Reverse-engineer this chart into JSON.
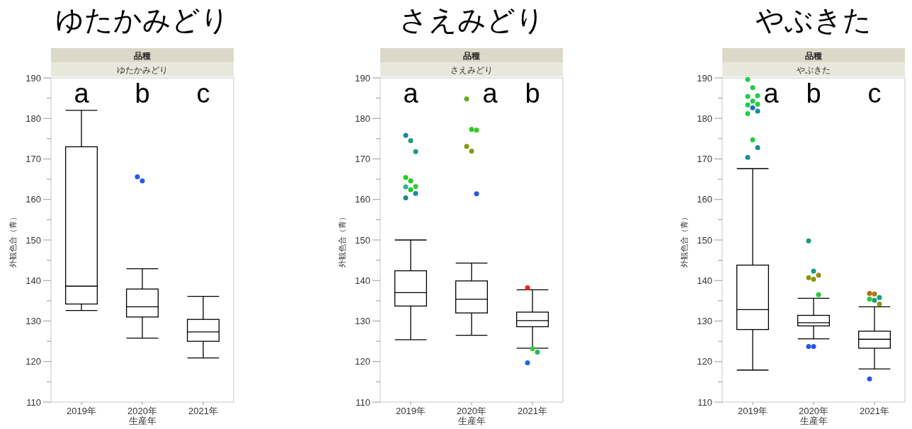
{
  "chart_data": [
    {
      "type": "box",
      "title": "ゆたかみどり",
      "subtitle": "品種",
      "xlabel": "生産年",
      "ylabel": "外観色合（青）",
      "categories": [
        "2019年",
        "2020年",
        "2021年"
      ],
      "ylim": [
        110,
        190
      ],
      "yticks": [
        110,
        {
          "value": 115,
          "label": null
        },
        120,
        {
          "value": 125,
          "label": null
        },
        130,
        {
          "value": 135,
          "label": null
        },
        140,
        {
          "value": 145,
          "label": null
        },
        150,
        {
          "value": 155,
          "label": null
        },
        160,
        {
          "value": 165,
          "label": null
        },
        170,
        {
          "value": 175,
          "label": null
        },
        180,
        {
          "value": 185,
          "label": null
        },
        190
      ],
      "boxes": [
        {
          "low": 132.6,
          "q1": 134.2,
          "median": 138.6,
          "q3": 173.0,
          "high": 182.0
        },
        {
          "low": 125.8,
          "q1": 131.0,
          "median": 133.5,
          "q3": 137.9,
          "high": 142.9
        },
        {
          "low": 120.9,
          "q1": 125.0,
          "median": 127.3,
          "q3": 130.4,
          "high": 136.1
        }
      ],
      "series": [
        {
          "type": "scatter",
          "x": [
            "2020年",
            "2020年"
          ],
          "values": [
            165.6,
            164.6
          ],
          "colors": [
            "#2a55e6",
            "#2a55e6"
          ]
        }
      ],
      "annotations": [
        "ゆたかみどり",
        "a",
        "b",
        "c"
      ]
    },
    {
      "type": "box",
      "title": "さえみどり",
      "subtitle": "品種",
      "xlabel": "生産年",
      "ylabel": "外観色合（青）",
      "categories": [
        "2019年",
        "2020年",
        "2021年"
      ],
      "ylim": [
        110,
        190
      ],
      "yticks": [
        110,
        {
          "value": 115,
          "label": null
        },
        120,
        {
          "value": 125,
          "label": null
        },
        130,
        {
          "value": 135,
          "label": null
        },
        140,
        {
          "value": 145,
          "label": null
        },
        150,
        {
          "value": 155,
          "label": null
        },
        160,
        {
          "value": 165,
          "label": null
        },
        170,
        {
          "value": 175,
          "label": null
        },
        180,
        {
          "value": 185,
          "label": null
        },
        190
      ],
      "boxes": [
        {
          "low": 125.4,
          "q1": 133.7,
          "median": 137.0,
          "q3": 142.4,
          "high": 150.0
        },
        {
          "low": 126.5,
          "q1": 132.0,
          "median": 135.4,
          "q3": 139.9,
          "high": 144.3
        },
        {
          "low": 123.3,
          "q1": 128.6,
          "median": 130.1,
          "q3": 132.2,
          "high": 137.7
        }
      ],
      "series": [
        {
          "type": "scatter",
          "x": [
            "2019年",
            "2019年",
            "2019年",
            "2019年",
            "2019年",
            "2019年",
            "2019年",
            "2019年",
            "2019年",
            "2019年",
            "2020年",
            "2020年",
            "2020年",
            "2020年",
            "2020年",
            "2020年",
            "2021年",
            "2021年",
            "2021年",
            "2021年"
          ],
          "values": [
            175.8,
            174.5,
            171.8,
            165.4,
            164.6,
            163.2,
            163.1,
            162.4,
            161.5,
            160.4,
            184.8,
            177.3,
            177.1,
            173.1,
            171.9,
            161.4,
            138.2,
            123.2,
            122.3,
            119.7
          ],
          "colors": [
            "#1a8aa0",
            "#1a9a8a",
            "#1a9a8a",
            "#22cc22",
            "#22cc22",
            "#33cc33",
            "#2db0a0",
            "#22cc22",
            "#1a8aa0",
            "#1a8a8a",
            "#66aa22",
            "#22cc22",
            "#33cc22",
            "#889911",
            "#889911",
            "#2255dd",
            "#ee2222",
            "#33cc33",
            "#22bb66",
            "#2266dd"
          ]
        }
      ],
      "annotations": [
        "さえみどり",
        "a",
        "a",
        "b"
      ]
    },
    {
      "type": "box",
      "title": "やぶきた",
      "subtitle": "品種",
      "xlabel": "生産年",
      "ylabel": "外観色合（青）",
      "categories": [
        "2019年",
        "2020年",
        "2021年"
      ],
      "ylim": [
        110,
        190
      ],
      "yticks": [
        110,
        {
          "value": 115,
          "label": null
        },
        120,
        {
          "value": 125,
          "label": null
        },
        130,
        {
          "value": 135,
          "label": null
        },
        140,
        {
          "value": 145,
          "label": null
        },
        150,
        {
          "value": 155,
          "label": null
        },
        160,
        {
          "value": 165,
          "label": null
        },
        170,
        {
          "value": 175,
          "label": null
        },
        180,
        {
          "value": 185,
          "label": null
        },
        190
      ],
      "boxes": [
        {
          "low": 117.9,
          "q1": 127.9,
          "median": 132.8,
          "q3": 143.8,
          "high": 167.6
        },
        {
          "low": 125.6,
          "q1": 128.8,
          "median": 129.6,
          "q3": 131.4,
          "high": 135.6
        },
        {
          "low": 118.2,
          "q1": 123.3,
          "median": 125.5,
          "q3": 127.5,
          "high": 133.5
        }
      ],
      "series": [
        {
          "type": "scatter",
          "x": [
            "2019年",
            "2019年",
            "2019年",
            "2019年",
            "2019年",
            "2019年",
            "2019年",
            "2019年",
            "2019年",
            "2019年",
            "2019年",
            "2019年",
            "2019年",
            "2020年",
            "2020年",
            "2020年",
            "2020年",
            "2020年",
            "2020年",
            "2020年",
            "2020年",
            "2021年",
            "2021年",
            "2021年",
            "2021年",
            "2021年",
            "2021年",
            "2021年"
          ],
          "values": [
            189.6,
            187.6,
            185.6,
            185.4,
            184.3,
            183.5,
            183.3,
            182.6,
            181.8,
            181.2,
            174.7,
            172.8,
            170.4,
            149.8,
            142.3,
            141.3,
            140.7,
            140.3,
            136.5,
            123.7,
            123.7,
            136.8,
            136.7,
            135.8,
            135.4,
            135.1,
            134.2,
            115.7
          ],
          "colors": [
            "#22cc44",
            "#22cc44",
            "#22cc44",
            "#22cc44",
            "#22cc44",
            "#22cc44",
            "#22cc44",
            "#1a70b0",
            "#1a8aa0",
            "#22cc44",
            "#22cc44",
            "#1a8aa0",
            "#1a8aa0",
            "#1a9a80",
            "#1a9a80",
            "#998811",
            "#889911",
            "#889911",
            "#22cc33",
            "#2a55e6",
            "#2a55e6",
            "#bb6611",
            "#aa7711",
            "#1a9a80",
            "#22cc33",
            "#1aa080",
            "#889911",
            "#2a55e6"
          ]
        }
      ],
      "annotations": [
        "やぶきた",
        "a",
        "b",
        "c"
      ]
    }
  ]
}
